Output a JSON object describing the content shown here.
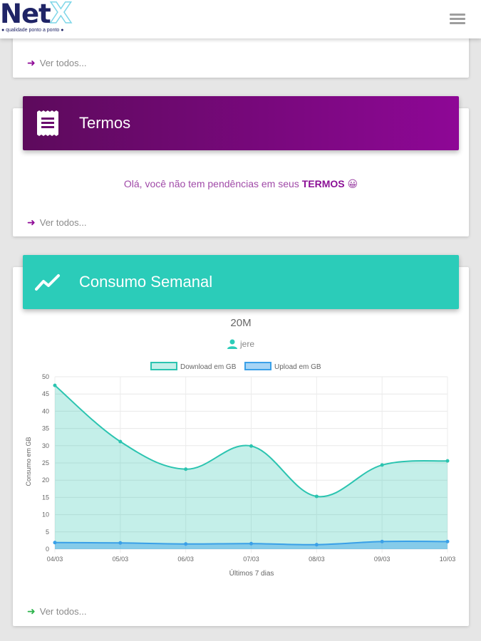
{
  "app": {
    "logo_text": "Net",
    "logo_x": "X",
    "logo_tagline": "● qualidade ponto a ponto ●",
    "menu_icon": "hamburger-menu-icon"
  },
  "cards": {
    "top": {
      "ver_todos": "Ver todos..."
    },
    "termos": {
      "title": "Termos",
      "icon": "receipt-icon",
      "message_prefix": "Olá, você não tem pendências em seus ",
      "message_emphasis": "TERMOS",
      "message_emoji": "😀",
      "ver_todos": "Ver todos..."
    },
    "consumo": {
      "title": "Consumo Semanal",
      "icon": "trending-line-icon",
      "plan": "20M",
      "user": "jere",
      "ver_todos": "Ver todos..."
    }
  },
  "colors": {
    "termos_start": "#5d0a5c",
    "termos_end": "#8e0796",
    "consumo": "#2bccb9",
    "download_line": "#2bc4b0",
    "upload_line": "#3aa0e8"
  },
  "chart_data": {
    "type": "line",
    "categories": [
      "04/03",
      "05/03",
      "06/03",
      "07/03",
      "08/03",
      "09/03",
      "10/03"
    ],
    "series": [
      {
        "name": "Download em GB",
        "values": [
          47.5,
          31.2,
          23.2,
          29.9,
          15.3,
          24.4,
          25.6
        ],
        "fill": true
      },
      {
        "name": "Upload em GB",
        "values": [
          1.9,
          1.8,
          1.5,
          1.6,
          1.3,
          2.2,
          2.2
        ],
        "fill": true
      }
    ],
    "xlabel": "Últimos 7 dias",
    "ylabel": "Consumo em GB",
    "ylim": [
      0,
      50
    ],
    "yticks": [
      0,
      5,
      10,
      15,
      20,
      25,
      30,
      35,
      40,
      45,
      50
    ],
    "grid": true,
    "legend": "top"
  }
}
